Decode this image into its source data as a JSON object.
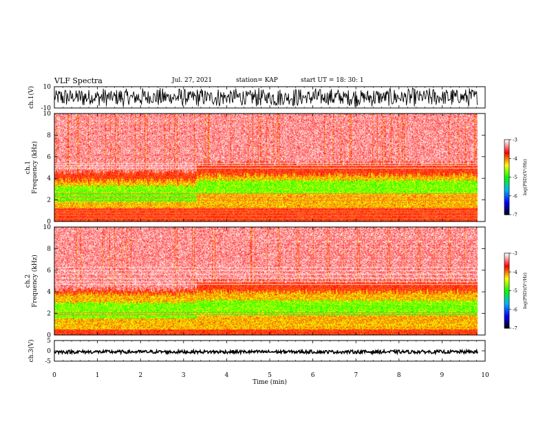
{
  "header": {
    "title": "VLF Spectra",
    "date": "Jul. 27, 2021",
    "station": "station= KAP",
    "start": "start UT =  18: 30: 1"
  },
  "chart_data": [
    {
      "type": "line",
      "title": "",
      "ylabel": "ch.1(V)",
      "ylim": [
        -10,
        10
      ],
      "yticks": [
        "10",
        "-10"
      ],
      "x_range_min": [
        0,
        9.83
      ],
      "description_values": {
        "typical_min": -8,
        "typical_max": 9,
        "mean": 0
      },
      "color": "#000000"
    },
    {
      "type": "heatmap",
      "ylabel": "ch.1\nFrequency (kHz)",
      "ylim": [
        0,
        10
      ],
      "yticks": [
        "0",
        "2",
        "4",
        "6",
        "8",
        "10"
      ],
      "x_range_min": [
        0,
        9.83
      ],
      "colorbar": {
        "label": "log(PSD)(V²/Hz)",
        "ticks": [
          "-3",
          "-4",
          "-5",
          "-6",
          "-7"
        ],
        "range": [
          -7,
          -3
        ]
      },
      "bands": [
        {
          "segment_min": [
            0,
            3.3
          ],
          "green_kHz": [
            1.8,
            3.3
          ],
          "yellow_kHz": [
            1.2,
            3.8
          ],
          "red_top_kHz": 4.6
        },
        {
          "segment_min": [
            3.3,
            9.83
          ],
          "green_kHz": [
            2.6,
            3.8
          ],
          "yellow_kHz": [
            1.3,
            4.3
          ],
          "red_top_kHz": 5.4
        }
      ],
      "line_tones_kHz": [
        0.3,
        0.55,
        0.8,
        1.0,
        1.3,
        2.0,
        2.3,
        2.6,
        5.0,
        5.2,
        5.4
      ]
    },
    {
      "type": "heatmap",
      "ylabel": "ch.2\nFrequency (kHz)",
      "ylim": [
        0,
        10
      ],
      "yticks": [
        "0",
        "2",
        "4",
        "6",
        "8",
        "10"
      ],
      "x_range_min": [
        0,
        9.83
      ],
      "colorbar": {
        "label": "log(PSD)(V²/Hz)",
        "ticks": [
          "-3",
          "-4",
          "-5",
          "-6",
          "-7"
        ],
        "range": [
          -7,
          -3
        ]
      },
      "bands": [
        {
          "segment_min": [
            0,
            3.3
          ],
          "green_kHz": [
            1.5,
            3.0
          ],
          "yellow_kHz": [
            0.5,
            3.8
          ],
          "red_top_kHz": 4.2
        },
        {
          "segment_min": [
            3.3,
            9.83
          ],
          "green_kHz": [
            1.8,
            3.2
          ],
          "yellow_kHz": [
            0.5,
            4.0
          ],
          "red_top_kHz": 5.0
        }
      ],
      "line_tones_kHz": [
        1.9,
        2.1,
        4.7,
        5.0,
        5.3,
        5.7,
        6.0,
        6.3
      ]
    },
    {
      "type": "line",
      "ylabel": "ch.3(V)",
      "ylim": [
        -5,
        5
      ],
      "yticks": [
        "5",
        "0",
        "-5"
      ],
      "x_range_min": [
        0,
        9.83
      ],
      "description_values": {
        "typical_min": -1.3,
        "typical_max": 0.3
      },
      "color": "#000000"
    }
  ],
  "xaxis": {
    "label": "Time (min)",
    "ticks": [
      "0",
      "1",
      "2",
      "3",
      "4",
      "5",
      "6",
      "7",
      "8",
      "9",
      "10"
    ],
    "range": [
      0,
      10
    ]
  },
  "colors": {
    "colormap": [
      "#000000",
      "#0000ff",
      "#00b4ff",
      "#00ff00",
      "#ffff00",
      "#ff0000",
      "#ffffff"
    ]
  }
}
